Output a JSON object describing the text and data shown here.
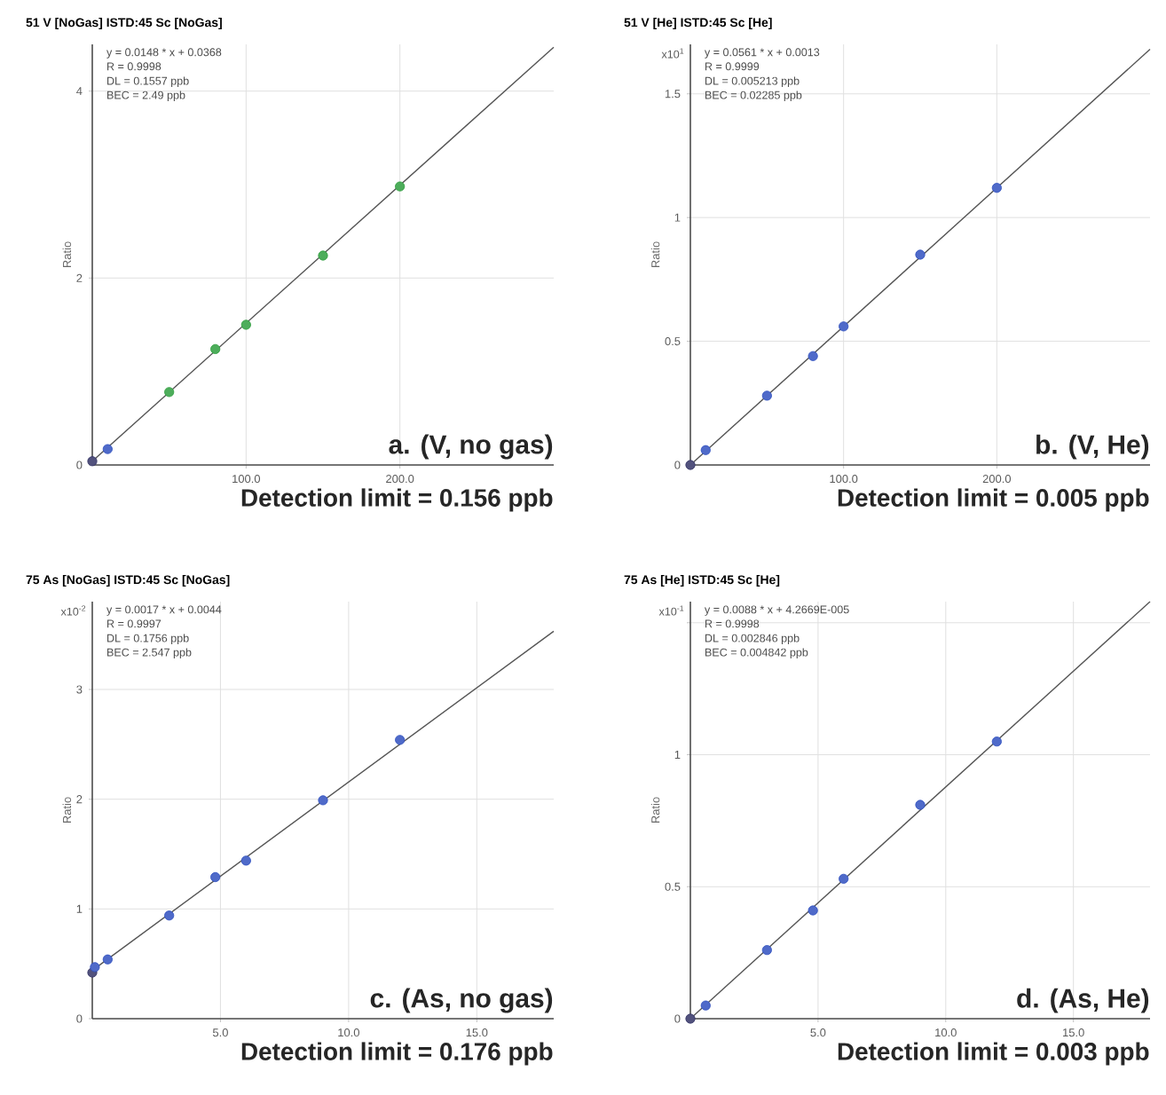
{
  "chart_data": [
    {
      "type": "scatter",
      "title": "51 V [NoGas] ISTD:45 Sc [NoGas]",
      "ylabel": "Ratio",
      "xlim": [
        0,
        300
      ],
      "ylim": [
        0,
        4.5
      ],
      "xticks": [
        {
          "value": 100,
          "label": "100.0"
        },
        {
          "value": 200,
          "label": "200.0"
        }
      ],
      "yticks": [
        0,
        2,
        4
      ],
      "grid": true,
      "annotations": [
        "y = 0.0148 * x + 0.0368",
        "R = 0.9998",
        "DL = 0.1557 ppb",
        "BEC = 2.49 ppb",
        "a. (V, no gas)",
        "Detection limit = 0.156 ppb"
      ],
      "series": [
        {
          "marker": "circle",
          "x": [
            0,
            10,
            50,
            80,
            100,
            150,
            200
          ],
          "values": [
            0.04,
            0.17,
            0.78,
            1.24,
            1.5,
            2.24,
            2.98
          ],
          "colors": [
            "#333366",
            "#3050c0",
            "#2e9e3e",
            "#2e9e3e",
            "#2e9e3e",
            "#2e9e3e",
            "#2e9e3e"
          ]
        },
        {
          "type": "line",
          "line_style": "solid",
          "color": "#555555",
          "x": [
            0,
            300
          ],
          "values": [
            0.04,
            4.47
          ]
        }
      ]
    },
    {
      "type": "scatter",
      "title": "51 V [He] ISTD:45 Sc [He]",
      "ylabel": "Ratio",
      "xlim": [
        0,
        300
      ],
      "ylim": [
        0,
        1.7
      ],
      "xticks": [
        {
          "value": 100,
          "label": "100.0"
        },
        {
          "value": 200,
          "label": "200.0"
        }
      ],
      "yticks": [
        0,
        0.5,
        1,
        1.5
      ],
      "grid": true,
      "annotations": [
        "y = 0.0561 * x + 0.0013",
        "R = 0.9999",
        "DL = 0.005213 ppb",
        "BEC = 0.02285 ppb",
        "b. (V, He)",
        "Detection limit = 0.005 ppb",
        "x10$^{1}$"
      ],
      "series": [
        {
          "marker": "circle",
          "x": [
            0,
            10,
            50,
            80,
            100,
            150,
            200
          ],
          "values": [
            0.0,
            0.06,
            0.28,
            0.44,
            0.56,
            0.85,
            1.12
          ],
          "colors": [
            "#333366",
            "#3050c0",
            "#3050c0",
            "#3050c0",
            "#3050c0",
            "#3050c0",
            "#3050c0"
          ]
        },
        {
          "type": "line",
          "line_style": "solid",
          "color": "#555555",
          "x": [
            0,
            300
          ],
          "values": [
            0.0,
            1.68
          ]
        }
      ]
    },
    {
      "type": "scatter",
      "title": "75 As [NoGas] ISTD:45 Sc [NoGas]",
      "ylabel": "Ratio",
      "xlim": [
        0,
        18
      ],
      "ylim": [
        0,
        3.8
      ],
      "xticks": [
        {
          "value": 5,
          "label": "5.0"
        },
        {
          "value": 10,
          "label": "10.0"
        },
        {
          "value": 15,
          "label": "15.0"
        }
      ],
      "yticks": [
        0,
        1,
        2,
        3
      ],
      "grid": true,
      "annotations": [
        "y = 0.0017 * x + 0.0044",
        "R = 0.9997",
        "DL = 0.1756 ppb",
        "BEC = 2.547 ppb",
        "c. (As, no gas)",
        "Detection limit = 0.176 ppb",
        "x10$^{-2}$"
      ],
      "series": [
        {
          "marker": "circle",
          "x": [
            0,
            0.1,
            0.6,
            3,
            4.8,
            6,
            9,
            12
          ],
          "values": [
            0.42,
            0.47,
            0.54,
            0.94,
            1.29,
            1.44,
            1.99,
            2.54
          ],
          "colors": [
            "#333366",
            "#3050c0",
            "#3050c0",
            "#3050c0",
            "#3050c0",
            "#3050c0",
            "#3050c0",
            "#3050c0"
          ]
        },
        {
          "type": "line",
          "line_style": "solid",
          "color": "#555555",
          "x": [
            0,
            18
          ],
          "values": [
            0.44,
            3.53
          ]
        }
      ]
    },
    {
      "type": "scatter",
      "title": "75 As [He] ISTD:45 Sc [He]",
      "ylabel": "Ratio",
      "xlim": [
        0,
        18
      ],
      "ylim": [
        0,
        1.58
      ],
      "xticks": [
        {
          "value": 5,
          "label": "5.0"
        },
        {
          "value": 10,
          "label": "10.0"
        },
        {
          "value": 15,
          "label": "15.0"
        }
      ],
      "yticks": [
        0,
        0.5,
        1,
        {
          "value": 1.5,
          "label": null
        }
      ],
      "grid": true,
      "annotations": [
        "y = 0.0088 * x + 4.2669E-005",
        "R = 0.9998",
        "DL = 0.002846 ppb",
        "BEC = 0.004842 ppb",
        "d. (As, He)",
        "Detection limit = 0.003 ppb",
        "x10$^{-1}$"
      ],
      "series": [
        {
          "marker": "circle",
          "x": [
            0,
            0.6,
            3,
            4.8,
            6,
            9,
            12
          ],
          "values": [
            0.0,
            0.05,
            0.26,
            0.41,
            0.53,
            0.81,
            1.05
          ],
          "colors": [
            "#333366",
            "#3050c0",
            "#3050c0",
            "#3050c0",
            "#3050c0",
            "#3050c0",
            "#3050c0"
          ]
        },
        {
          "type": "line",
          "line_style": "solid",
          "color": "#555555",
          "x": [
            0,
            18
          ],
          "values": [
            0.0,
            1.58
          ]
        }
      ]
    }
  ]
}
